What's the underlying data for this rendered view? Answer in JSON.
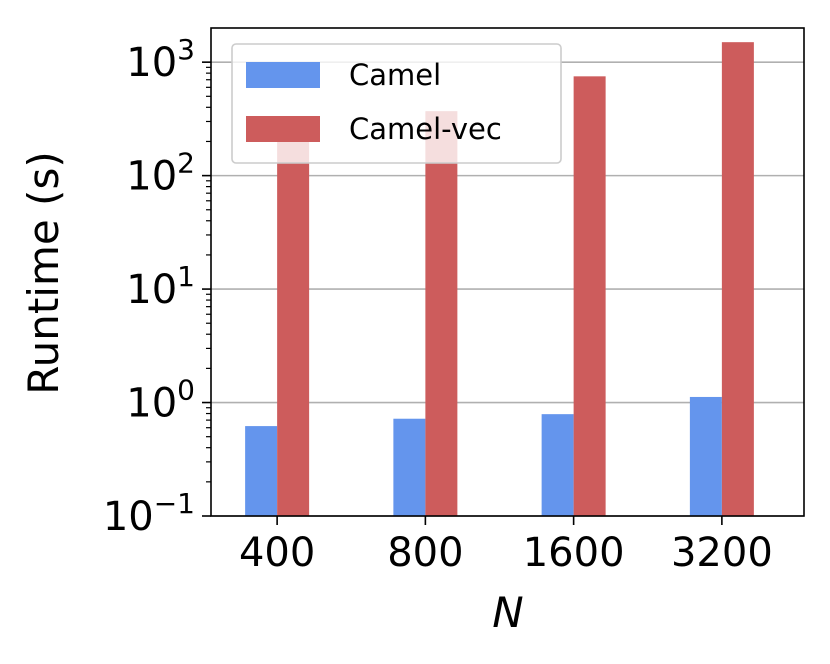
{
  "chart_data": {
    "type": "bar",
    "yscale": "log",
    "categories": [
      "400",
      "800",
      "1600",
      "3200"
    ],
    "series": [
      {
        "name": "Camel",
        "values": [
          0.62,
          0.72,
          0.79,
          1.12
        ],
        "color": "#6495ED"
      },
      {
        "name": "Camel-vec",
        "values": [
          230,
          370,
          750,
          1500
        ],
        "color": "#CD5C5C"
      }
    ],
    "xlabel": "N",
    "ylabel": "Runtime (s)",
    "ylim": [
      0.1,
      2000
    ],
    "ytick_labels": [
      {
        "base": "10",
        "exp": "−1"
      },
      {
        "base": "10",
        "exp": "0"
      },
      {
        "base": "10",
        "exp": "1"
      },
      {
        "base": "10",
        "exp": "2"
      },
      {
        "base": "10",
        "exp": "3"
      }
    ],
    "grid": "horizontal",
    "legend_position": "upper-left"
  }
}
